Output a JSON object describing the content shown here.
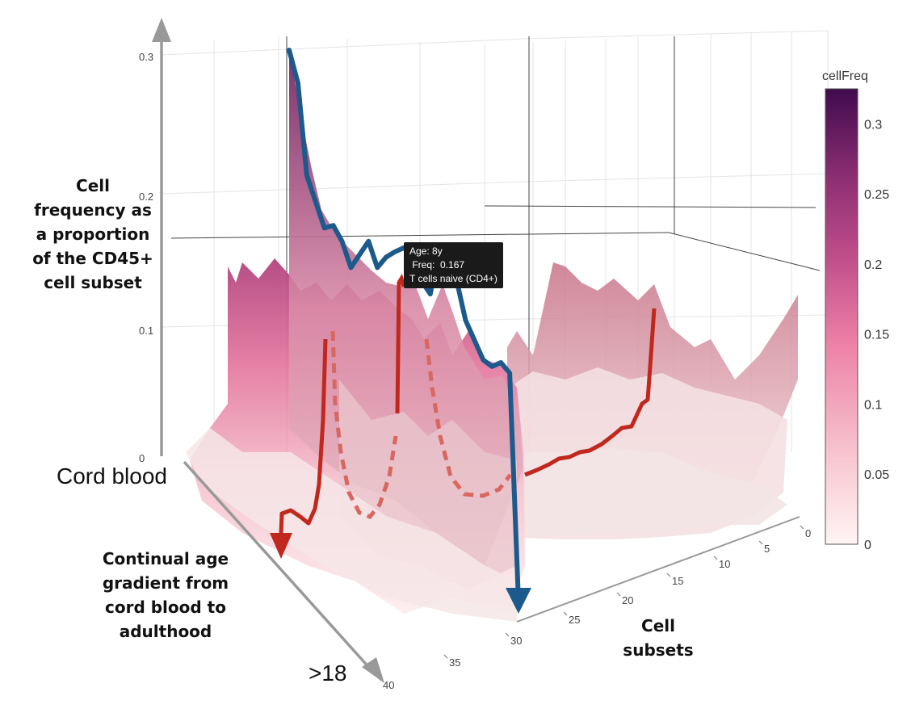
{
  "chart_data": {
    "type": "surface",
    "colorbar": {
      "title": "cellFreq",
      "ticks": [
        "0.3",
        "0.25",
        "0.2",
        "0.15",
        "0.1",
        "0.05",
        "0"
      ],
      "range": [
        0,
        0.325
      ],
      "colors": [
        "#fff4f4",
        "#f7c4cf",
        "#ec7ea5",
        "#c2508c",
        "#8f2f74",
        "#3f0b4d"
      ]
    },
    "z_axis": {
      "title": "Cell frequency as a proportion of the CD45+ cell subset",
      "ticks": [
        "0.3",
        "0.2",
        "0.1",
        "0"
      ]
    },
    "x_axis": {
      "title": "Cell subsets",
      "ticks": [
        "0",
        "5",
        "10",
        "15",
        "20",
        "25",
        "30",
        "35",
        "40"
      ]
    },
    "y_axis": {
      "title": "Continual age gradient from cord blood to adulthood",
      "start_label": "Cord blood",
      "end_label": ">18"
    },
    "tooltip": {
      "lines": [
        "Age: 8y",
        " Freq:  0.167",
        "T cells naive (CD4+)"
      ]
    },
    "highlighted_series": {
      "subset": "T cells naive (CD4+)",
      "values": [
        0.305,
        0.28,
        0.21,
        0.19,
        0.17,
        0.172,
        0.16,
        0.14,
        0.15,
        0.16,
        0.14,
        0.148,
        0.152,
        0.155,
        0.15,
        0.13,
        0.12,
        0.155,
        0.14,
        0.13,
        0.1,
        0.085,
        0.07,
        0.065,
        0.068,
        0.06,
        0.0
      ]
    }
  }
}
